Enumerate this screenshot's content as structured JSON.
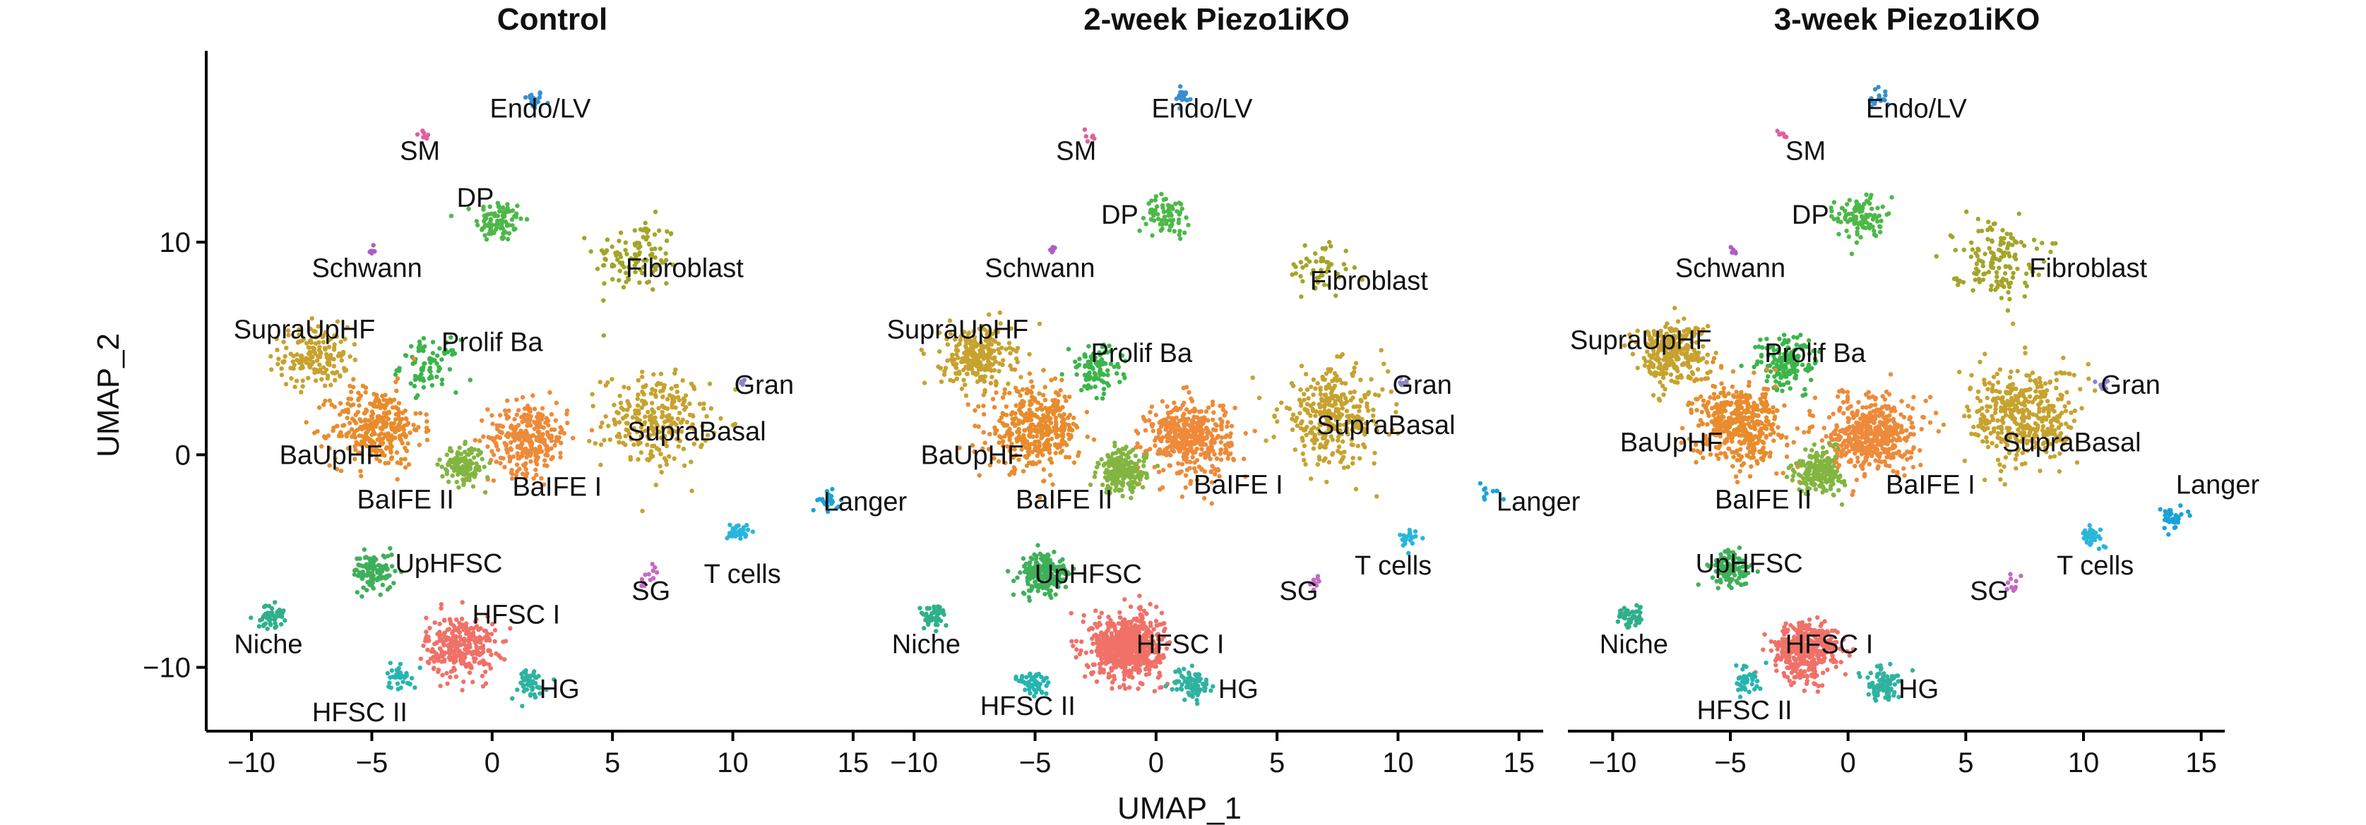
{
  "chart_data": {
    "type": "scatter",
    "xlabel": "UMAP_1",
    "ylabel": "UMAP_2",
    "xlim": [
      -11,
      16
    ],
    "ylim": [
      -13,
      19
    ],
    "x_ticks": [
      -10,
      -5,
      0,
      5,
      10,
      15
    ],
    "x_tick_labels": [
      "−10",
      "−5",
      "0",
      "5",
      "10",
      "15"
    ],
    "y_ticks": [
      10,
      0,
      -10
    ],
    "y_tick_labels": [
      "10",
      "0",
      "−10"
    ],
    "grid": false,
    "legend": "none",
    "panels": [
      {
        "title": "Control",
        "clusters": [
          {
            "label": "Endo/LV",
            "x": 1.7,
            "y": 16.7,
            "n": 20,
            "spread": 0.4,
            "color": "#3a8fd1",
            "label_x": 2.0,
            "label_y": 16.3
          },
          {
            "label": "SM",
            "x": -2.8,
            "y": 15.0,
            "n": 8,
            "spread": 0.3,
            "color": "#e0609a",
            "label_x": -3.0,
            "label_y": 14.3
          },
          {
            "label": "DP",
            "x": 0.3,
            "y": 11.0,
            "n": 90,
            "spread": 0.9,
            "color": "#4db848",
            "label_x": -0.7,
            "label_y": 12.1
          },
          {
            "label": "Fibroblast",
            "x": 6.0,
            "y": 9.3,
            "n": 110,
            "spread": 1.6,
            "color": "#a3a528",
            "label_x": 8.0,
            "label_y": 8.8
          },
          {
            "label": "Schwann",
            "x": -5.0,
            "y": 9.6,
            "n": 6,
            "spread": 0.2,
            "color": "#b05cc6",
            "label_x": -5.2,
            "label_y": 8.8
          },
          {
            "label": "SupraUpHF",
            "x": -7.4,
            "y": 4.6,
            "n": 160,
            "spread": 1.3,
            "color": "#c7a22e",
            "label_x": -7.8,
            "label_y": 5.9
          },
          {
            "label": "Prolif Ba",
            "x": -2.6,
            "y": 4.2,
            "n": 80,
            "spread": 1.1,
            "color": "#3bb54a",
            "label_x": 0.0,
            "label_y": 5.3
          },
          {
            "label": "Gran",
            "x": 10.4,
            "y": 3.4,
            "n": 6,
            "spread": 0.2,
            "color": "#8c86c9",
            "label_x": 11.3,
            "label_y": 3.3
          },
          {
            "label": "SupraBasal",
            "x": 6.8,
            "y": 1.6,
            "n": 260,
            "spread": 2.0,
            "color": "#c7a22e",
            "label_x": 8.5,
            "label_y": 1.1
          },
          {
            "label": "BaUpHF",
            "x": -4.8,
            "y": 1.3,
            "n": 320,
            "spread": 1.7,
            "color": "#e88c2d",
            "label_x": -6.7,
            "label_y": 0.0
          },
          {
            "label": "BaIFE I",
            "x": 1.5,
            "y": 0.8,
            "n": 290,
            "spread": 1.5,
            "color": "#ee8a3a",
            "label_x": 2.7,
            "label_y": -1.5
          },
          {
            "label": "BaIFE II",
            "x": -1.2,
            "y": -0.5,
            "n": 140,
            "spread": 0.8,
            "color": "#82b541",
            "label_x": -3.6,
            "label_y": -2.1
          },
          {
            "label": "Langer",
            "x": 14.0,
            "y": -2.2,
            "n": 22,
            "spread": 0.4,
            "color": "#1aa3d6",
            "label_x": 15.5,
            "label_y": -2.2
          },
          {
            "label": "T cells",
            "x": 10.2,
            "y": -3.6,
            "n": 34,
            "spread": 0.4,
            "color": "#29b6d9",
            "label_x": 10.4,
            "label_y": -5.6
          },
          {
            "label": "SG",
            "x": 6.5,
            "y": -5.8,
            "n": 12,
            "spread": 0.5,
            "color": "#c46ac4",
            "label_x": 6.6,
            "label_y": -6.4
          },
          {
            "label": "UpHFSC",
            "x": -4.9,
            "y": -5.5,
            "n": 110,
            "spread": 0.8,
            "color": "#3fb05a",
            "label_x": -1.8,
            "label_y": -5.1
          },
          {
            "label": "Niche",
            "x": -9.2,
            "y": -7.6,
            "n": 50,
            "spread": 0.5,
            "color": "#2fb08a",
            "label_x": -9.3,
            "label_y": -8.9
          },
          {
            "label": "HFSC I",
            "x": -1.3,
            "y": -9.0,
            "n": 300,
            "spread": 1.3,
            "color": "#f07168",
            "label_x": 1.0,
            "label_y": -7.5
          },
          {
            "label": "HFSC II",
            "x": -3.8,
            "y": -10.4,
            "n": 36,
            "spread": 0.6,
            "color": "#25b5b0",
            "label_x": -5.5,
            "label_y": -12.1
          },
          {
            "label": "HG",
            "x": 1.5,
            "y": -10.8,
            "n": 50,
            "spread": 0.7,
            "color": "#2fb3a0",
            "label_x": 2.8,
            "label_y": -11.0
          }
        ]
      },
      {
        "title": "2-week Piezo1iKO",
        "clusters": [
          {
            "label": "Endo/LV",
            "x": 1.1,
            "y": 16.8,
            "n": 18,
            "spread": 0.4,
            "color": "#3a8fd1",
            "label_x": 1.9,
            "label_y": 16.3
          },
          {
            "label": "SM",
            "x": -2.8,
            "y": 15.0,
            "n": 6,
            "spread": 0.3,
            "color": "#e0609a",
            "label_x": -3.3,
            "label_y": 14.3
          },
          {
            "label": "DP",
            "x": 0.5,
            "y": 11.3,
            "n": 70,
            "spread": 0.8,
            "color": "#4db848",
            "label_x": -1.5,
            "label_y": 11.3
          },
          {
            "label": "Fibroblast",
            "x": 6.8,
            "y": 8.8,
            "n": 50,
            "spread": 1.2,
            "color": "#a3a528",
            "label_x": 8.8,
            "label_y": 8.2
          },
          {
            "label": "Schwann",
            "x": -4.3,
            "y": 9.6,
            "n": 6,
            "spread": 0.2,
            "color": "#b05cc6",
            "label_x": -4.8,
            "label_y": 8.8
          },
          {
            "label": "SupraUpHF",
            "x": -7.4,
            "y": 4.6,
            "n": 240,
            "spread": 1.3,
            "color": "#c7a22e",
            "label_x": -8.2,
            "label_y": 5.9
          },
          {
            "label": "Prolif Ba",
            "x": -2.5,
            "y": 4.0,
            "n": 100,
            "spread": 1.0,
            "color": "#3bb54a",
            "label_x": -0.6,
            "label_y": 4.8
          },
          {
            "label": "Gran",
            "x": 10.2,
            "y": 3.4,
            "n": 8,
            "spread": 0.2,
            "color": "#8c86c9",
            "label_x": 11.0,
            "label_y": 3.3
          },
          {
            "label": "SupraBasal",
            "x": 7.3,
            "y": 1.8,
            "n": 320,
            "spread": 2.0,
            "color": "#c7a22e",
            "label_x": 9.5,
            "label_y": 1.4
          },
          {
            "label": "BaUpHF",
            "x": -5.0,
            "y": 1.2,
            "n": 380,
            "spread": 1.7,
            "color": "#e88c2d",
            "label_x": -7.6,
            "label_y": 0.0
          },
          {
            "label": "BaIFE I",
            "x": 1.4,
            "y": 0.8,
            "n": 420,
            "spread": 1.6,
            "color": "#ee8a3a",
            "label_x": 3.4,
            "label_y": -1.4
          },
          {
            "label": "BaIFE II",
            "x": -1.4,
            "y": -0.8,
            "n": 200,
            "spread": 0.9,
            "color": "#82b541",
            "label_x": -3.8,
            "label_y": -2.1
          },
          {
            "label": "Langer",
            "x": 13.8,
            "y": -1.8,
            "n": 10,
            "spread": 0.4,
            "color": "#1aa3d6",
            "label_x": 15.8,
            "label_y": -2.2
          },
          {
            "label": "T cells",
            "x": 10.3,
            "y": -4.0,
            "n": 24,
            "spread": 0.4,
            "color": "#29b6d9",
            "label_x": 9.8,
            "label_y": -5.2
          },
          {
            "label": "SG",
            "x": 6.6,
            "y": -6.0,
            "n": 8,
            "spread": 0.4,
            "color": "#c46ac4",
            "label_x": 5.9,
            "label_y": -6.4
          },
          {
            "label": "UpHFSC",
            "x": -4.6,
            "y": -5.6,
            "n": 200,
            "spread": 0.9,
            "color": "#3fb05a",
            "label_x": -2.8,
            "label_y": -5.6
          },
          {
            "label": "Niche",
            "x": -9.2,
            "y": -7.6,
            "n": 50,
            "spread": 0.5,
            "color": "#2fb08a",
            "label_x": -9.5,
            "label_y": -8.9
          },
          {
            "label": "HFSC I",
            "x": -1.2,
            "y": -9.0,
            "n": 700,
            "spread": 1.3,
            "color": "#f07168",
            "label_x": 1.0,
            "label_y": -8.9
          },
          {
            "label": "HFSC II",
            "x": -5.0,
            "y": -10.8,
            "n": 50,
            "spread": 0.6,
            "color": "#25b5b0",
            "label_x": -5.3,
            "label_y": -11.8
          },
          {
            "label": "HG",
            "x": 1.5,
            "y": -10.8,
            "n": 80,
            "spread": 0.7,
            "color": "#2fb3a0",
            "label_x": 3.4,
            "label_y": -11.0
          }
        ]
      },
      {
        "title": "3-week Piezo1iKO",
        "clusters": [
          {
            "label": "Endo/LV",
            "x": 1.3,
            "y": 16.8,
            "n": 20,
            "spread": 0.4,
            "color": "#3a8fd1",
            "label_x": 2.9,
            "label_y": 16.3
          },
          {
            "label": "SM",
            "x": -2.8,
            "y": 15.0,
            "n": 6,
            "spread": 0.3,
            "color": "#e0609a",
            "label_x": -1.8,
            "label_y": 14.3
          },
          {
            "label": "DP",
            "x": 0.5,
            "y": 11.2,
            "n": 110,
            "spread": 0.9,
            "color": "#4db848",
            "label_x": -1.6,
            "label_y": 11.3
          },
          {
            "label": "Fibroblast",
            "x": 6.2,
            "y": 9.3,
            "n": 140,
            "spread": 1.6,
            "color": "#a3a528",
            "label_x": 10.2,
            "label_y": 8.8
          },
          {
            "label": "Schwann",
            "x": -4.8,
            "y": 9.6,
            "n": 6,
            "spread": 0.2,
            "color": "#b05cc6",
            "label_x": -5.0,
            "label_y": 8.8
          },
          {
            "label": "SupraUpHF",
            "x": -7.5,
            "y": 4.8,
            "n": 300,
            "spread": 1.3,
            "color": "#c7a22e",
            "label_x": -8.8,
            "label_y": 5.4
          },
          {
            "label": "Prolif Ba",
            "x": -2.6,
            "y": 4.3,
            "n": 150,
            "spread": 1.2,
            "color": "#3bb54a",
            "label_x": -1.4,
            "label_y": 4.8
          },
          {
            "label": "Gran",
            "x": 10.8,
            "y": 3.3,
            "n": 10,
            "spread": 0.3,
            "color": "#8c86c9",
            "label_x": 12.0,
            "label_y": 3.3
          },
          {
            "label": "SupraBasal",
            "x": 7.5,
            "y": 1.8,
            "n": 400,
            "spread": 2.1,
            "color": "#c7a22e",
            "label_x": 9.5,
            "label_y": 0.6
          },
          {
            "label": "BaUpHF",
            "x": -4.6,
            "y": 1.4,
            "n": 450,
            "spread": 1.7,
            "color": "#e88c2d",
            "label_x": -7.5,
            "label_y": 0.6
          },
          {
            "label": "BaIFE I",
            "x": 1.0,
            "y": 1.0,
            "n": 480,
            "spread": 1.6,
            "color": "#ee8a3a",
            "label_x": 3.5,
            "label_y": -1.4
          },
          {
            "label": "BaIFE II",
            "x": -1.2,
            "y": -0.8,
            "n": 220,
            "spread": 0.9,
            "color": "#82b541",
            "label_x": -3.6,
            "label_y": -2.1
          },
          {
            "label": "Langer",
            "x": 13.8,
            "y": -3.0,
            "n": 36,
            "spread": 0.6,
            "color": "#1aa3d6",
            "label_x": 15.7,
            "label_y": -1.4
          },
          {
            "label": "T cells",
            "x": 10.4,
            "y": -3.8,
            "n": 40,
            "spread": 0.4,
            "color": "#29b6d9",
            "label_x": 10.5,
            "label_y": -5.2
          },
          {
            "label": "SG",
            "x": 7.0,
            "y": -6.0,
            "n": 10,
            "spread": 0.4,
            "color": "#c46ac4",
            "label_x": 6.0,
            "label_y": -6.4
          },
          {
            "label": "UpHFSC",
            "x": -5.0,
            "y": -5.4,
            "n": 120,
            "spread": 0.8,
            "color": "#3fb05a",
            "label_x": -4.2,
            "label_y": -5.1
          },
          {
            "label": "Niche",
            "x": -9.2,
            "y": -7.6,
            "n": 50,
            "spread": 0.5,
            "color": "#2fb08a",
            "label_x": -9.1,
            "label_y": -8.9
          },
          {
            "label": "HFSC I",
            "x": -1.8,
            "y": -9.2,
            "n": 420,
            "spread": 1.2,
            "color": "#f07168",
            "label_x": -0.8,
            "label_y": -8.9
          },
          {
            "label": "HFSC II",
            "x": -4.4,
            "y": -10.6,
            "n": 40,
            "spread": 0.6,
            "color": "#25b5b0",
            "label_x": -4.4,
            "label_y": -12.0
          },
          {
            "label": "HG",
            "x": 1.5,
            "y": -10.8,
            "n": 80,
            "spread": 0.7,
            "color": "#2fb3a0",
            "label_x": 3.0,
            "label_y": -11.0
          }
        ]
      }
    ]
  }
}
